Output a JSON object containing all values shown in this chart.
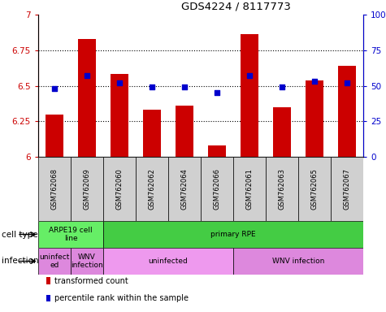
{
  "title": "GDS4224 / 8117773",
  "samples": [
    "GSM762068",
    "GSM762069",
    "GSM762060",
    "GSM762062",
    "GSM762064",
    "GSM762066",
    "GSM762061",
    "GSM762063",
    "GSM762065",
    "GSM762067"
  ],
  "transformed_counts": [
    6.3,
    6.83,
    6.58,
    6.33,
    6.36,
    6.08,
    6.86,
    6.35,
    6.54,
    6.64
  ],
  "percentile_ranks": [
    48,
    57,
    52,
    49,
    49,
    45,
    57,
    49,
    53,
    52
  ],
  "ylim_left": [
    6.0,
    7.0
  ],
  "ylim_right": [
    0,
    100
  ],
  "yticks_left": [
    6.0,
    6.25,
    6.5,
    6.75,
    7.0
  ],
  "ytick_labels_left": [
    "6",
    "6.25",
    "6.5",
    "6.75",
    "7"
  ],
  "yticks_right": [
    0,
    25,
    50,
    75,
    100
  ],
  "ytick_labels_right": [
    "0",
    "25",
    "50",
    "75",
    "100%"
  ],
  "bar_color": "#cc0000",
  "dot_color": "#0000cc",
  "sample_box_color": "#d0d0d0",
  "cell_type_groups": [
    {
      "label": "ARPE19 cell\nline",
      "start": 0,
      "end": 2,
      "color": "#66ee66"
    },
    {
      "label": "primary RPE",
      "start": 2,
      "end": 10,
      "color": "#44cc44"
    }
  ],
  "infection_groups": [
    {
      "label": "uninfect\ned",
      "start": 0,
      "end": 1,
      "color": "#dd88dd"
    },
    {
      "label": "WNV\ninfection",
      "start": 1,
      "end": 2,
      "color": "#dd88dd"
    },
    {
      "label": "uninfected",
      "start": 2,
      "end": 6,
      "color": "#ee99ee"
    },
    {
      "label": "WNV infection",
      "start": 6,
      "end": 10,
      "color": "#dd88dd"
    }
  ],
  "cell_type_label": "cell type",
  "infection_label": "infection",
  "legend_items": [
    {
      "color": "#cc0000",
      "label": "transformed count"
    },
    {
      "color": "#0000cc",
      "label": "percentile rank within the sample"
    }
  ],
  "bar_width": 0.55
}
